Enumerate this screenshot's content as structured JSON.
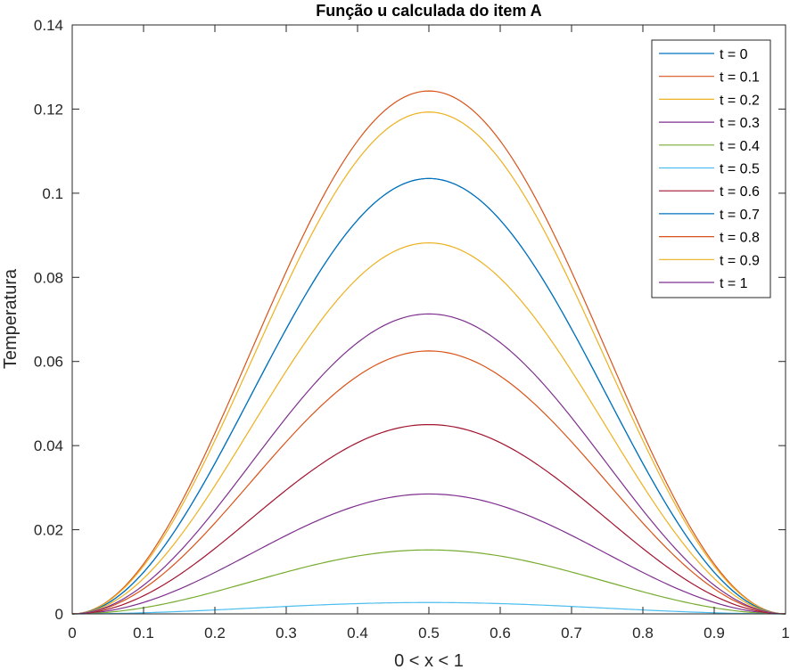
{
  "chart_data": {
    "type": "line",
    "title": "Função u calculada do item A",
    "xlabel": "0 < x < 1",
    "ylabel": "Temperatura",
    "xlim": [
      0,
      1
    ],
    "ylim": [
      0,
      0.14
    ],
    "x_ticks": [
      "0",
      "0.1",
      "0.2",
      "0.3",
      "0.4",
      "0.5",
      "0.6",
      "0.7",
      "0.8",
      "0.9",
      "1"
    ],
    "y_ticks": [
      "0",
      "0.02",
      "0.04",
      "0.06",
      "0.08",
      "0.1",
      "0.12",
      "0.14"
    ],
    "grid": false,
    "legend_position": "top-right",
    "curve_shape": "sin^2(pi x)",
    "series": [
      {
        "name": "t = 0",
        "color": "#0072BD",
        "peak": 0.1035
      },
      {
        "name": "t = 0.1",
        "color": "#D95319",
        "peak": 0.1243
      },
      {
        "name": "t = 0.2",
        "color": "#EDB120",
        "peak": 0.1193
      },
      {
        "name": "t = 0.3",
        "color": "#7E2F8E",
        "peak": 0.0285
      },
      {
        "name": "t = 0.4",
        "color": "#77AC30",
        "peak": 0.0152
      },
      {
        "name": "t = 0.5",
        "color": "#4DBEEE",
        "peak": 0.0027
      },
      {
        "name": "t = 0.6",
        "color": "#A2142F",
        "peak": 0.045
      },
      {
        "name": "t = 0.7",
        "color": "#0072BD",
        "peak": 0.1035
      },
      {
        "name": "t = 0.8",
        "color": "#D95319",
        "peak": 0.0625
      },
      {
        "name": "t = 0.9",
        "color": "#EDB120",
        "peak": 0.0882
      },
      {
        "name": "t = 1",
        "color": "#7E2F8E",
        "peak": 0.0713
      }
    ]
  }
}
